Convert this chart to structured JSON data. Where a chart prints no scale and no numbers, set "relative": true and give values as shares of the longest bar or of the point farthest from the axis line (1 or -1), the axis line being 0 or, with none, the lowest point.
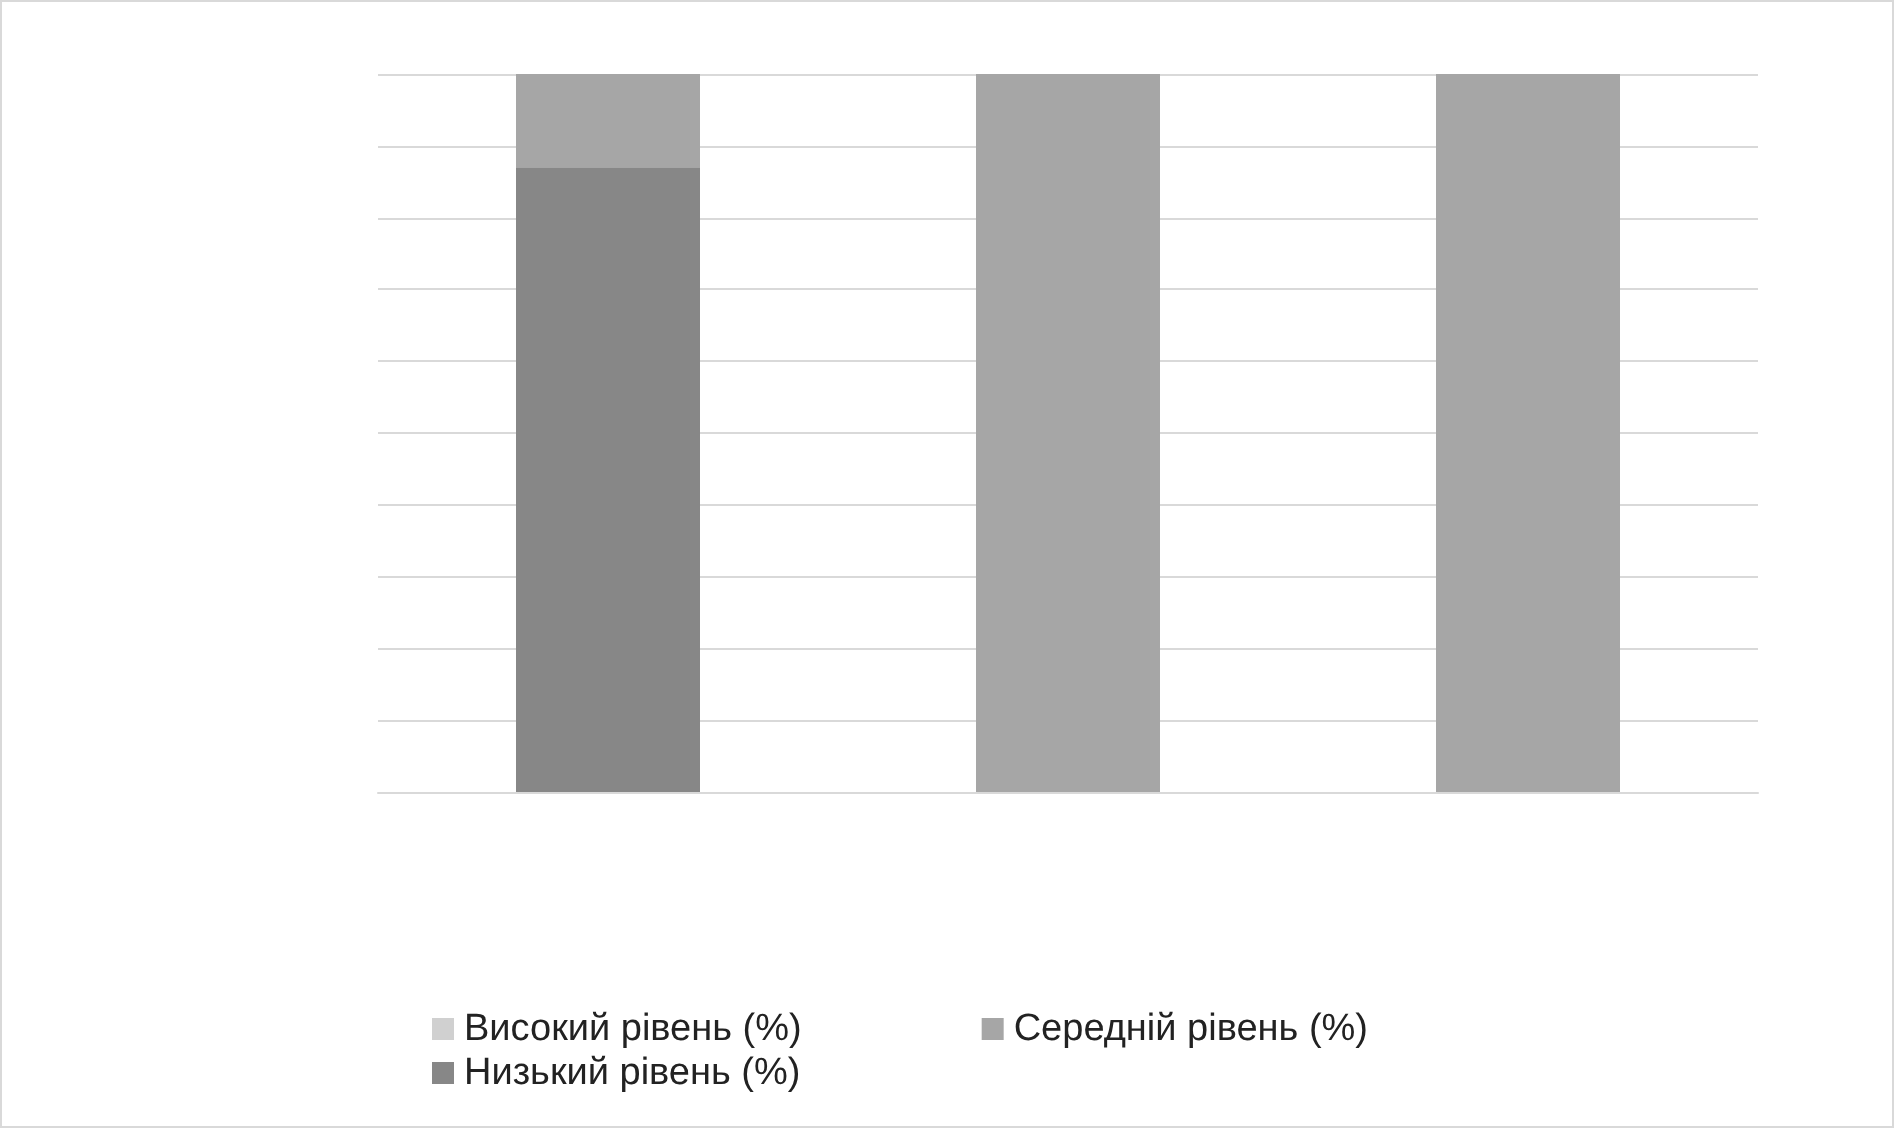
{
  "chart_data": {
    "type": "bar",
    "relative": true,
    "stacked": true,
    "grid": "y",
    "legend": "bottom",
    "categories": [
      null,
      null,
      null
    ],
    "series": [
      {
        "name": "Низький рівень (%)",
        "color": "#878787",
        "values": [
          0.87,
          0,
          0
        ]
      },
      {
        "name": "Середній рівень (%)",
        "color": "#a6a6a6",
        "values": [
          0.13,
          1,
          1
        ]
      },
      {
        "name": "Високий рівень (%)",
        "color": "#d0d0d0",
        "values": [
          0,
          0,
          0
        ]
      }
    ]
  }
}
